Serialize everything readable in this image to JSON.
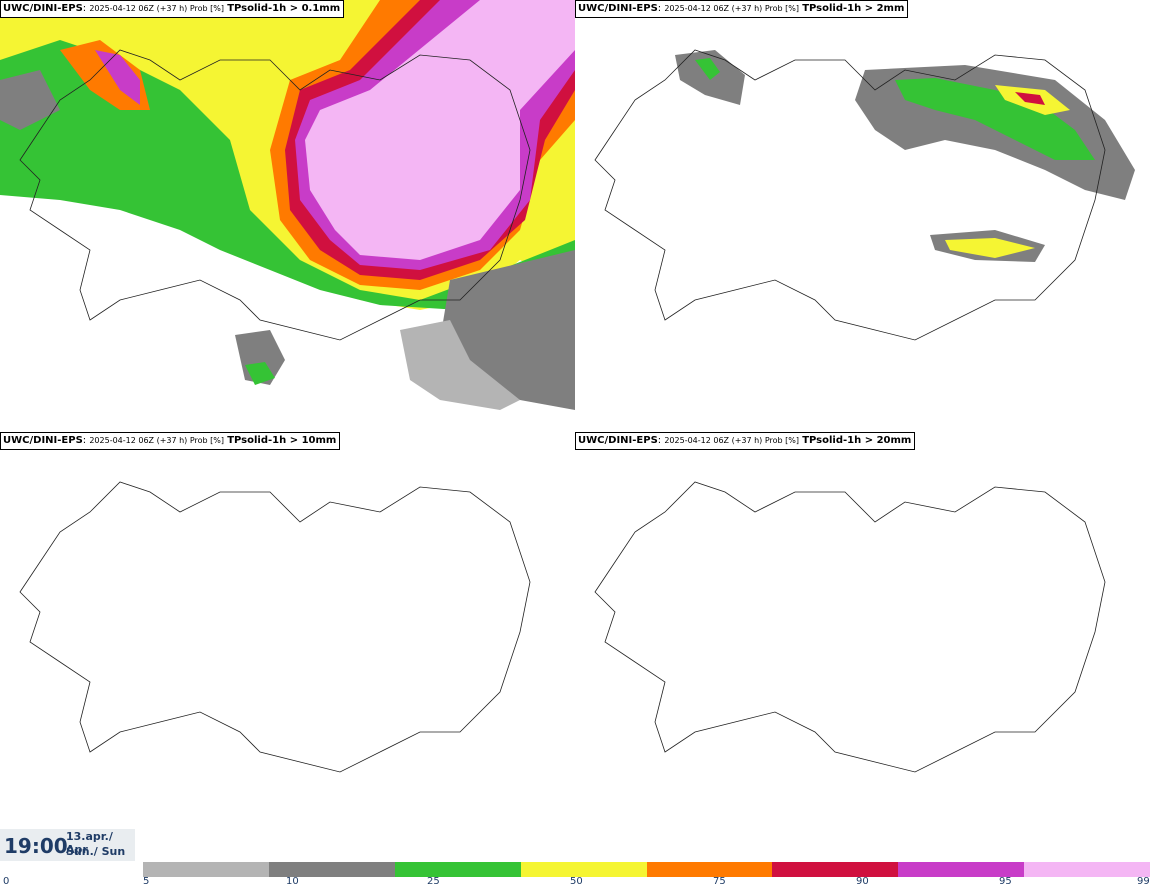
{
  "panels": [
    {
      "source": "UWC/DINI-EPS",
      "run": "2025-04-12 06Z (+37 h) Prob [%]",
      "variable": "TPsolid-1h > 0.1mm"
    },
    {
      "source": "UWC/DINI-EPS",
      "run": "2025-04-12 06Z (+37 h) Prob [%]",
      "variable": "TPsolid-1h > 2mm"
    },
    {
      "source": "UWC/DINI-EPS",
      "run": "2025-04-12 06Z (+37 h) Prob [%]",
      "variable": "TPsolid-1h > 10mm"
    },
    {
      "source": "UWC/DINI-EPS",
      "run": "2025-04-12 06Z (+37 h) Prob [%]",
      "variable": "TPsolid-1h > 20mm"
    }
  ],
  "valid_time": {
    "time": "19:00",
    "date": "13.apr./ Apr",
    "day": "Sun./ Sun"
  },
  "colorbar": {
    "segments": [
      {
        "color": "#b4b4b4"
      },
      {
        "color": "#7f7f7f"
      },
      {
        "color": "#35c335"
      },
      {
        "color": "#f5f533"
      },
      {
        "color": "#ff7a00"
      },
      {
        "color": "#d0103f"
      },
      {
        "color": "#c83cc8"
      },
      {
        "color": "#f4b6f4"
      }
    ],
    "labels": [
      "0",
      "5",
      "10",
      "25",
      "50",
      "75",
      "90",
      "95",
      "99"
    ]
  }
}
